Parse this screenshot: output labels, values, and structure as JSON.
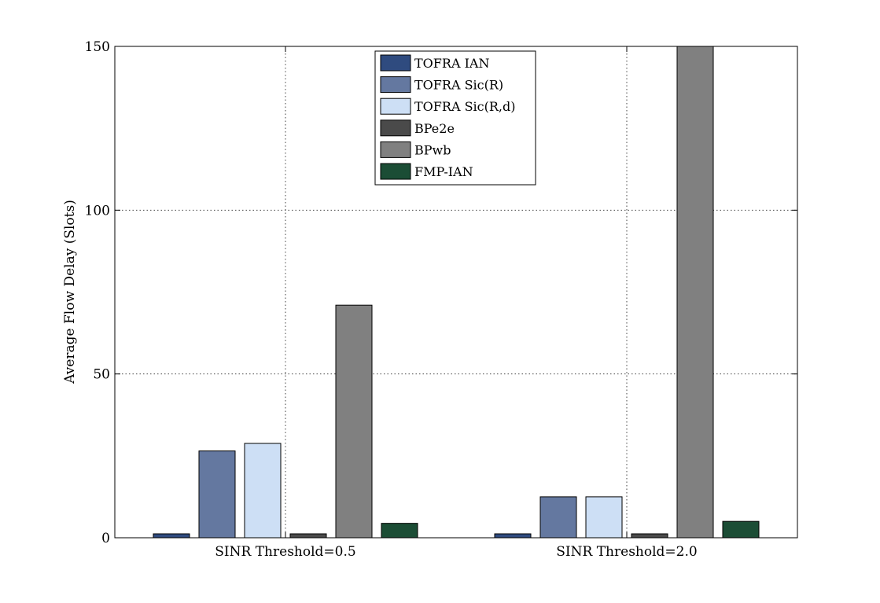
{
  "chart_data": {
    "type": "bar",
    "ylabel": "Average Flow Delay (Slots)",
    "xlabel": "",
    "ylim": [
      0,
      150
    ],
    "yticks": [
      0,
      50,
      100,
      150
    ],
    "grid": true,
    "legend_position": "top-center",
    "categories": [
      "SINR Threshold=0.5",
      "SINR Threshold=2.0"
    ],
    "series": [
      {
        "name": "TOFRA IAN",
        "color": "#2f4b7f",
        "values": [
          1.2,
          1.2
        ]
      },
      {
        "name": "TOFRA Sic(R)",
        "color": "#6478a0",
        "values": [
          26.5,
          12.5
        ]
      },
      {
        "name": "TOFRA Sic(R,d)",
        "color": "#cddff5",
        "values": [
          28.8,
          12.5
        ]
      },
      {
        "name": "BPe2e",
        "color": "#4a4a4a",
        "values": [
          1.2,
          1.2
        ]
      },
      {
        "name": "BPwb",
        "color": "#808080",
        "values": [
          71,
          150
        ]
      },
      {
        "name": "FMP-IAN",
        "color": "#1b4d35",
        "values": [
          4.4,
          5.0
        ]
      }
    ]
  }
}
